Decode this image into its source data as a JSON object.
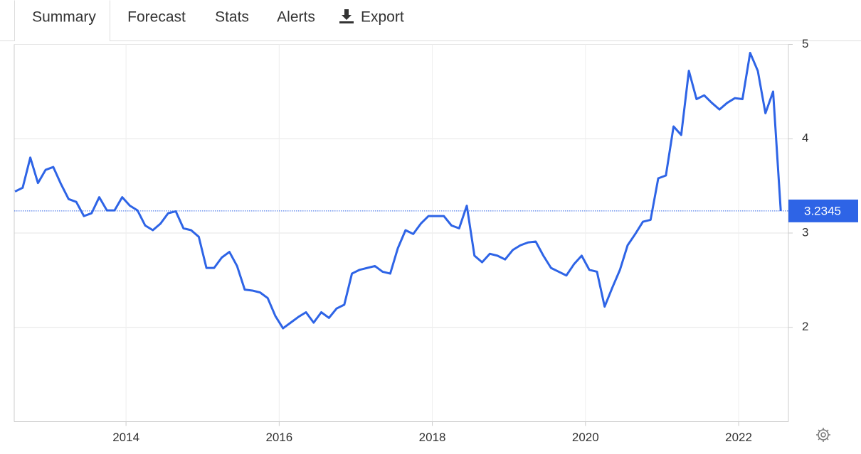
{
  "tabs": [
    "Summary",
    "Forecast",
    "Stats",
    "Alerts",
    "Export"
  ],
  "chart_data": {
    "type": "line",
    "color": "#2e64e6",
    "x": [
      2012.55,
      2012.65,
      2012.75,
      2012.85,
      2012.95,
      2013.05,
      2013.15,
      2013.25,
      2013.35,
      2013.45,
      2013.55,
      2013.65,
      2013.75,
      2013.85,
      2013.95,
      2014.05,
      2014.15,
      2014.25,
      2014.35,
      2014.45,
      2014.55,
      2014.65,
      2014.75,
      2014.85,
      2014.95,
      2015.05,
      2015.15,
      2015.25,
      2015.35,
      2015.45,
      2015.55,
      2015.65,
      2015.75,
      2015.85,
      2015.95,
      2016.05,
      2016.15,
      2016.25,
      2016.35,
      2016.45,
      2016.55,
      2016.65,
      2016.75,
      2016.85,
      2016.95,
      2017.05,
      2017.15,
      2017.25,
      2017.35,
      2017.45,
      2017.55,
      2017.65,
      2017.75,
      2017.85,
      2017.95,
      2018.05,
      2018.15,
      2018.25,
      2018.35,
      2018.45,
      2018.55,
      2018.65,
      2018.75,
      2018.85,
      2018.95,
      2019.05,
      2019.15,
      2019.25,
      2019.35,
      2019.45,
      2019.55,
      2019.65,
      2019.75,
      2019.85,
      2019.95,
      2020.05,
      2020.15,
      2020.25,
      2020.35,
      2020.45,
      2020.55,
      2020.65,
      2020.75,
      2020.85,
      2020.95,
      2021.05,
      2021.15,
      2021.25,
      2021.35,
      2021.45,
      2021.55,
      2021.65,
      2021.75,
      2021.85,
      2021.95,
      2022.05,
      2022.15,
      2022.25,
      2022.35,
      2022.45,
      2022.55
    ],
    "values": [
      3.44,
      3.48,
      3.8,
      3.53,
      3.67,
      3.7,
      3.52,
      3.36,
      3.33,
      3.18,
      3.21,
      3.38,
      3.24,
      3.24,
      3.38,
      3.29,
      3.24,
      3.08,
      3.03,
      3.1,
      3.21,
      3.23,
      3.05,
      3.03,
      2.96,
      2.63,
      2.63,
      2.74,
      2.8,
      2.65,
      2.4,
      2.39,
      2.37,
      2.31,
      2.12,
      1.99,
      2.05,
      2.11,
      2.16,
      2.05,
      2.16,
      2.1,
      2.2,
      2.24,
      2.57,
      2.61,
      2.63,
      2.65,
      2.59,
      2.57,
      2.84,
      3.03,
      2.99,
      3.1,
      3.18,
      3.18,
      3.18,
      3.08,
      3.05,
      3.29,
      2.76,
      2.69,
      2.78,
      2.76,
      2.72,
      2.82,
      2.87,
      2.9,
      2.91,
      2.76,
      2.63,
      2.59,
      2.55,
      2.67,
      2.76,
      2.61,
      2.59,
      2.22,
      2.42,
      2.61,
      2.87,
      2.99,
      3.12,
      3.14,
      3.58,
      3.61,
      4.13,
      4.04,
      4.72,
      4.42,
      4.46,
      4.38,
      4.31,
      4.38,
      4.43,
      4.42,
      4.91,
      4.72,
      4.27,
      4.5,
      3.2345
    ],
    "xlim": [
      2012.54,
      2022.65
    ],
    "ylim": [
      1,
      5
    ],
    "xticks": [
      2014,
      2016,
      2018,
      2020,
      2022
    ],
    "yticks": [
      2,
      3,
      4,
      5
    ],
    "grid": true
  }
}
